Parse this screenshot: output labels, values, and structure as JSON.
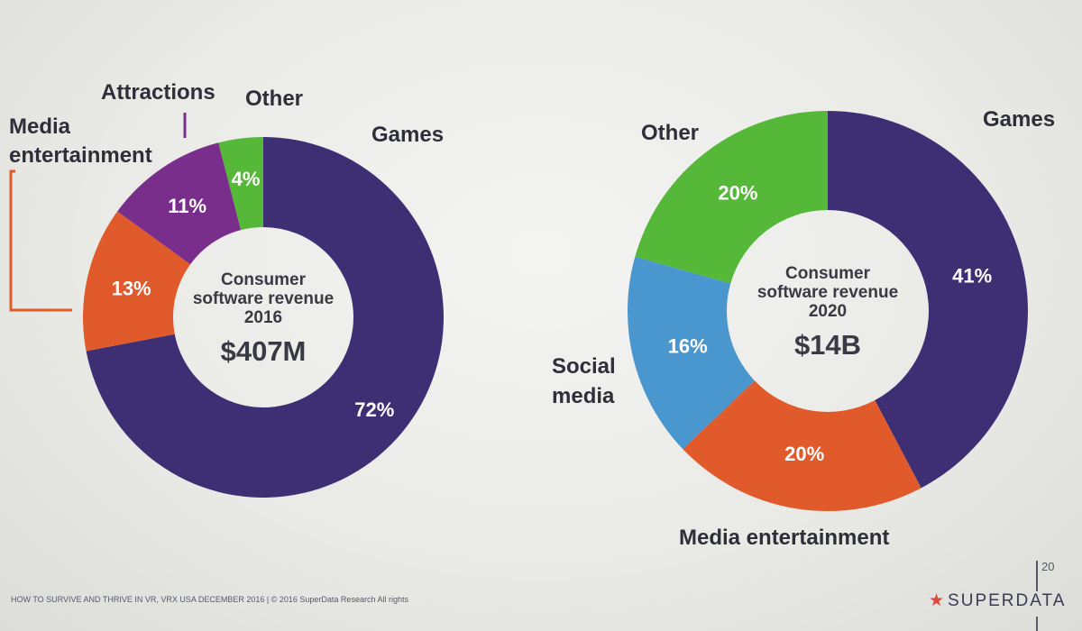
{
  "chart_data": [
    {
      "type": "pie",
      "variant": "donut",
      "center_text": [
        "Consumer",
        "software revenue",
        "2016"
      ],
      "center_value": "$407M",
      "slices": [
        {
          "label": "Games",
          "value": 72,
          "display": "72%",
          "color": "#3e2f74"
        },
        {
          "label": "Media entertainment",
          "value": 13,
          "display": "13%",
          "color": "#e05a2c"
        },
        {
          "label": "Attractions",
          "value": 11,
          "display": "11%",
          "color": "#7a2e8c"
        },
        {
          "label": "Other",
          "value": 4,
          "display": "4%",
          "color": "#55b838"
        }
      ]
    },
    {
      "type": "pie",
      "variant": "donut",
      "center_text": [
        "Consumer",
        "software revenue",
        "2020"
      ],
      "center_value": "$14B",
      "slices": [
        {
          "label": "Games",
          "value": 41,
          "display": "41%",
          "color": "#3e2f74"
        },
        {
          "label": "Media entertainment",
          "value": 20,
          "display": "20%",
          "color": "#e05a2c"
        },
        {
          "label": "Social media",
          "value": 16,
          "display": "16%",
          "color": "#4a96cf"
        },
        {
          "label": "Other",
          "value": 20,
          "display": "20%",
          "color": "#55b838"
        }
      ]
    }
  ],
  "footer": {
    "text": "HOW TO SURVIVE AND THRIVE IN VR, VRX USA DECEMBER 2016  |  © 2016 SuperData Research  All rights",
    "page_number": "20",
    "brand": "SUPERDATA",
    "brand_icon": "star-icon"
  }
}
